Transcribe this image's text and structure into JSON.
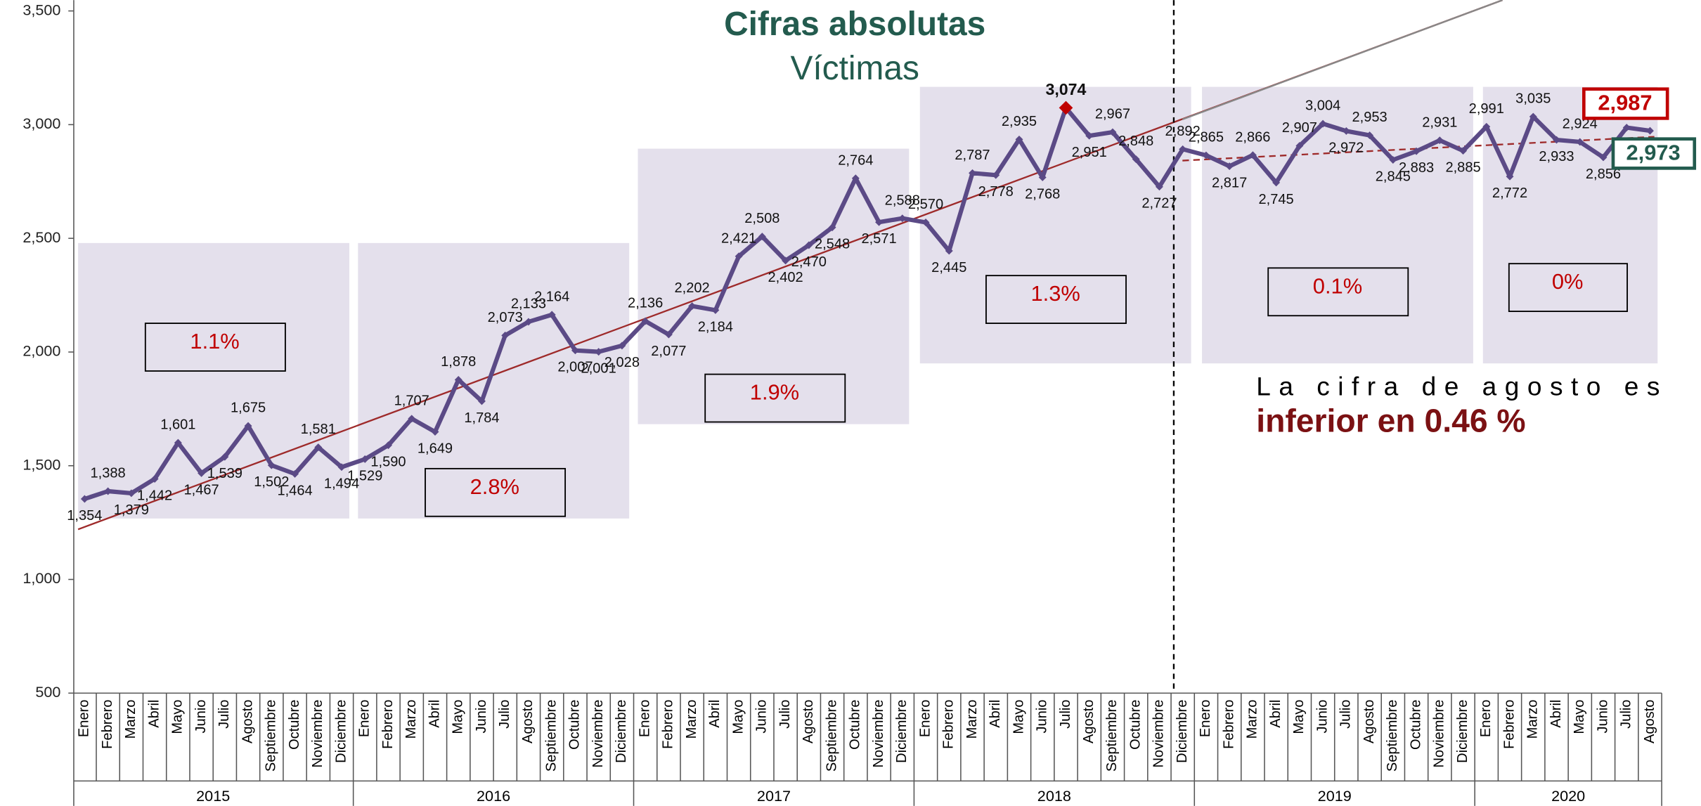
{
  "chart_data": {
    "type": "line",
    "title": "Cifras absolutas",
    "subtitle": "Víctimas",
    "annotation": [
      "La cifra de agosto es",
      "inferior en 0.46 %"
    ],
    "categories": [
      "Enero",
      "Febrero",
      "Marzo",
      "Abril",
      "Mayo",
      "Junio",
      "Julio",
      "Agosto",
      "Septiembre",
      "Octubre",
      "Noviembre",
      "Diciembre",
      "Enero",
      "Febrero",
      "Marzo",
      "Abril",
      "Mayo",
      "Junio",
      "Julio",
      "Agosto",
      "Septiembre",
      "Octubre",
      "Noviembre",
      "Diciembre",
      "Enero",
      "Febrero",
      "Marzo",
      "Abril",
      "Mayo",
      "Junio",
      "Julio",
      "Agosto",
      "Septiembre",
      "Octubre",
      "Noviembre",
      "Diciembre",
      "Enero",
      "Febrero",
      "Marzo",
      "Abril",
      "Mayo",
      "Junio",
      "Julio",
      "Agosto",
      "Septiembre",
      "Octubre",
      "Noviembre",
      "Diciembre",
      "Enero",
      "Febrero",
      "Marzo",
      "Abril",
      "Mayo",
      "Junio",
      "Julio",
      "Agosto",
      "Septiembre",
      "Octubre",
      "Noviembre",
      "Diciembre",
      "Enero",
      "Febrero",
      "Marzo",
      "Abril",
      "Mayo",
      "Junio",
      "Julio",
      "Agosto"
    ],
    "years": [
      "2015",
      "2016",
      "2017",
      "2018",
      "2019",
      "2020"
    ],
    "period_labels": [
      "1.1%",
      "2.8%",
      "1.9%",
      "1.3%",
      "0.1%",
      "0%"
    ],
    "color": "#5b4a86",
    "values": [
      1354,
      1388,
      1379,
      1442,
      1601,
      1467,
      1539,
      1675,
      1502,
      1464,
      1581,
      1494,
      1529,
      1590,
      1707,
      1649,
      1878,
      1784,
      2073,
      2133,
      2164,
      2007,
      2001,
      2028,
      2136,
      2077,
      2202,
      2184,
      2421,
      2508,
      2402,
      2470,
      2548,
      2764,
      2571,
      2588,
      2570,
      2445,
      2787,
      2778,
      2935,
      2768,
      3074,
      2951,
      2967,
      2848,
      2727,
      2892,
      2865,
      2817,
      2866,
      2745,
      2907,
      3004,
      2972,
      2953,
      2845,
      2883,
      2931,
      2885,
      2991,
      2772,
      3035,
      2933,
      2924,
      2856,
      2987,
      2973
    ],
    "value_labels": [
      "1,354",
      "1,388",
      "1,379",
      "1,442",
      "1,601",
      "1,467",
      "1,539",
      "1,675",
      "1,502",
      "1,464",
      "1,581",
      "1,494",
      "1,529",
      "1,590",
      "1,707",
      "1,649",
      "1,878",
      "1,784",
      "2,073",
      "2,133",
      "2,164",
      "2,007",
      "2,001",
      "2,028",
      "2,136",
      "2,077",
      "2,202",
      "2,184",
      "2,421",
      "2,508",
      "2,402",
      "2,470",
      "2,548",
      "2,764",
      "2,571",
      "2,588",
      "2,570",
      "2,445",
      "2,787",
      "2,778",
      "2,935",
      "2,768",
      "3,074",
      "2,951",
      "2,967",
      "2,848",
      "2,727",
      "2,892",
      "2,865",
      "2,817",
      "2,866",
      "2,745",
      "2,907",
      "3,004",
      "2,972",
      "2,953",
      "2,845",
      "2,883",
      "2,931",
      "2,885",
      "2,991",
      "2,772",
      "3,035",
      "2,933",
      "2,924",
      "2,856",
      "2,987",
      "2,973"
    ],
    "ylim": [
      500,
      3500
    ],
    "yticks": [
      500,
      {
        "value": 1000,
        "label": "1,000"
      },
      {
        "value": 1500,
        "label": "1,500"
      },
      {
        "value": 2000,
        "label": "2,000"
      },
      {
        "value": 2500,
        "label": "2,500"
      },
      {
        "value": 3000,
        "label": "3,000"
      },
      {
        "value": 3500,
        "label": "3,500"
      }
    ]
  }
}
